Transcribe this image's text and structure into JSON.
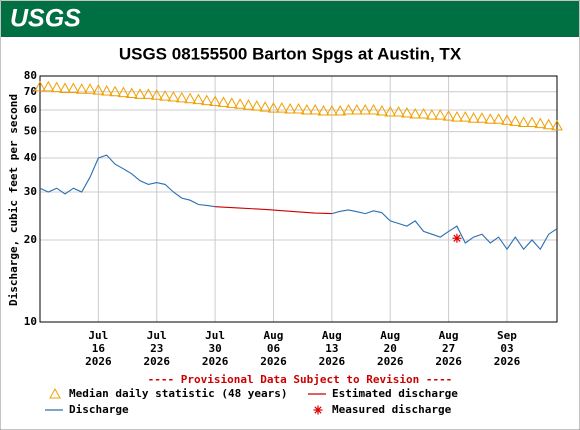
{
  "logo": "USGS",
  "chart_data": {
    "type": "line",
    "title": "USGS 08155500 Barton Spgs at Austin, TX",
    "y_label": "Discharge, cubic feet per second",
    "notice": "---- Provisional Data Subject to Revision ----",
    "ylog": true,
    "grid": true,
    "ylim": [
      10,
      80
    ],
    "yticks": [
      10,
      20,
      30,
      40,
      50,
      60,
      70,
      80
    ],
    "xlim": [
      "2026-07-09",
      "2026-09-09"
    ],
    "xticks": [
      {
        "value": "2026-07-16",
        "label": [
          "Jul",
          "16",
          "2026"
        ]
      },
      {
        "value": "2026-07-23",
        "label": [
          "Jul",
          "23",
          "2026"
        ]
      },
      {
        "value": "2026-07-30",
        "label": [
          "Jul",
          "30",
          "2026"
        ]
      },
      {
        "value": "2026-08-06",
        "label": [
          "Aug",
          "06",
          "2026"
        ]
      },
      {
        "value": "2026-08-13",
        "label": [
          "Aug",
          "13",
          "2026"
        ]
      },
      {
        "value": "2026-08-20",
        "label": [
          "Aug",
          "20",
          "2026"
        ]
      },
      {
        "value": "2026-08-27",
        "label": [
          "Aug",
          "27",
          "2026"
        ]
      },
      {
        "value": "2026-09-03",
        "label": [
          "Sep",
          "03",
          "2026"
        ]
      }
    ],
    "x": [
      "2026-07-09",
      "2026-07-10",
      "2026-07-11",
      "2026-07-12",
      "2026-07-13",
      "2026-07-14",
      "2026-07-15",
      "2026-07-16",
      "2026-07-17",
      "2026-07-18",
      "2026-07-19",
      "2026-07-20",
      "2026-07-21",
      "2026-07-22",
      "2026-07-23",
      "2026-07-24",
      "2026-07-25",
      "2026-07-26",
      "2026-07-27",
      "2026-07-28",
      "2026-07-29",
      "2026-07-30",
      "2026-07-31",
      "2026-08-01",
      "2026-08-02",
      "2026-08-03",
      "2026-08-04",
      "2026-08-05",
      "2026-08-06",
      "2026-08-07",
      "2026-08-08",
      "2026-08-09",
      "2026-08-10",
      "2026-08-11",
      "2026-08-12",
      "2026-08-13",
      "2026-08-14",
      "2026-08-15",
      "2026-08-16",
      "2026-08-17",
      "2026-08-18",
      "2026-08-19",
      "2026-08-20",
      "2026-08-21",
      "2026-08-22",
      "2026-08-23",
      "2026-08-24",
      "2026-08-25",
      "2026-08-26",
      "2026-08-27",
      "2026-08-28",
      "2026-08-29",
      "2026-08-30",
      "2026-08-31",
      "2026-09-01",
      "2026-09-02",
      "2026-09-03",
      "2026-09-04",
      "2026-09-05",
      "2026-09-06",
      "2026-09-07",
      "2026-09-08",
      "2026-09-09"
    ],
    "series": [
      {
        "name": "Median daily statistic (48 years)",
        "color": "#f0a000",
        "marker": "triangle",
        "values": [
          73,
          73,
          72.5,
          72,
          72,
          71.5,
          71.5,
          71,
          70.5,
          70,
          69.5,
          69,
          68.5,
          68.5,
          68,
          67.5,
          67,
          66.5,
          66,
          65.5,
          65,
          64.5,
          64,
          63.5,
          63,
          62.5,
          62,
          61.5,
          61,
          61,
          60.5,
          60.5,
          60,
          60,
          59.5,
          59.5,
          59.5,
          60,
          60,
          60,
          60,
          59.5,
          59,
          59,
          58.5,
          58,
          58,
          57.5,
          57.5,
          57,
          56.5,
          56.5,
          56,
          56,
          55.5,
          55.5,
          55,
          54.5,
          54,
          54,
          53.5,
          53,
          52.5
        ]
      },
      {
        "name": "Estimated discharge",
        "color": "#cc0000",
        "marker": "line",
        "x": [
          "2026-07-30",
          "2026-08-02",
          "2026-08-05",
          "2026-08-08",
          "2026-08-11",
          "2026-08-13"
        ],
        "values": [
          26.5,
          26.2,
          25.9,
          25.5,
          25.1,
          25.0
        ]
      },
      {
        "name": "Discharge",
        "color": "#2a6fb0",
        "marker": "line",
        "values": [
          31,
          30,
          31,
          29.5,
          31,
          30,
          34,
          40,
          41,
          38,
          36.5,
          35,
          33,
          32,
          32.5,
          32,
          30,
          28.5,
          28,
          27,
          26.8,
          26.5,
          null,
          null,
          null,
          null,
          null,
          null,
          null,
          null,
          null,
          null,
          null,
          null,
          null,
          25.0,
          25.5,
          25.8,
          25.4,
          25.0,
          25.6,
          25.2,
          23.5,
          23,
          22.5,
          23.5,
          21.5,
          21.0,
          20.5,
          21.5,
          22.5,
          19.5,
          20.5,
          21,
          19.5,
          20.5,
          18.5,
          20.5,
          18.5,
          20,
          18.5,
          21,
          22
        ]
      },
      {
        "name": "Measured discharge",
        "color": "#dd0000",
        "marker": "star",
        "x": [
          "2026-08-28"
        ],
        "values": [
          20.3
        ]
      }
    ]
  }
}
